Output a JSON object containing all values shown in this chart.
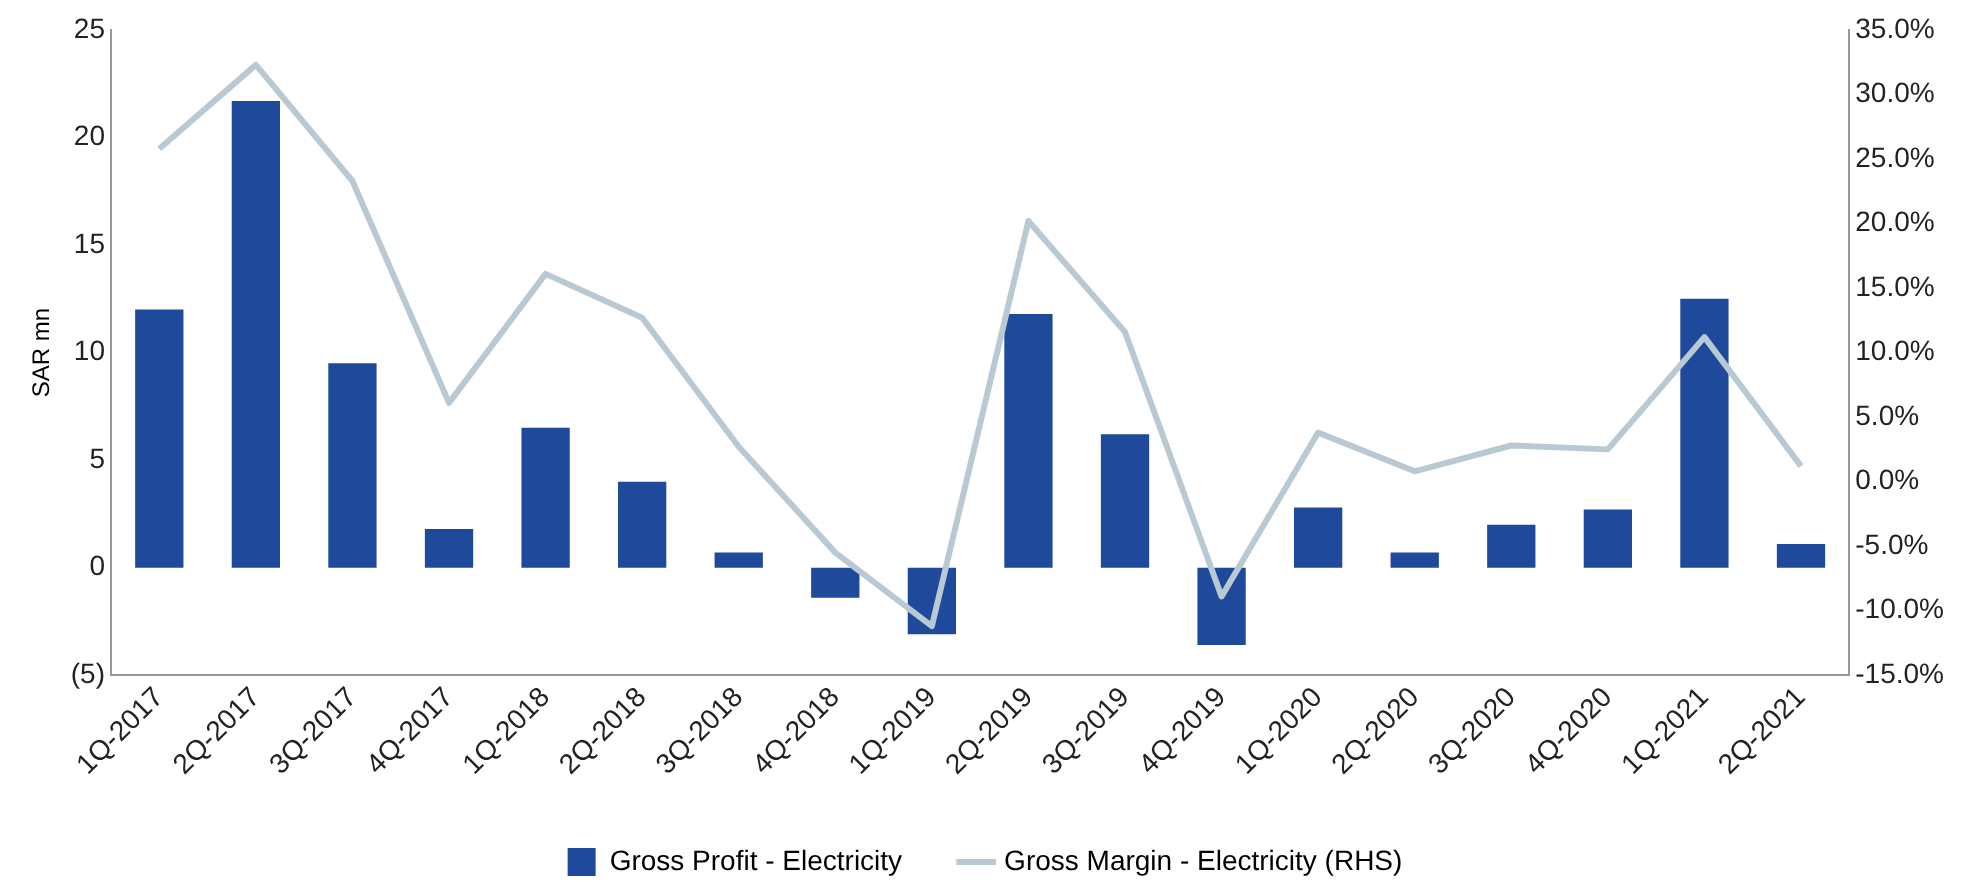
{
  "chart_data": {
    "type": "bar",
    "ylabel": "SAR mn",
    "categories": [
      "1Q-2017",
      "2Q-2017",
      "3Q-2017",
      "4Q-2017",
      "1Q-2018",
      "2Q-2018",
      "3Q-2018",
      "4Q-2018",
      "1Q-2019",
      "2Q-2019",
      "3Q-2019",
      "4Q-2019",
      "1Q-2020",
      "2Q-2020",
      "3Q-2020",
      "4Q-2020",
      "1Q-2021",
      "2Q-2021"
    ],
    "series": [
      {
        "name": "Gross Profit - Electricity",
        "color": "#1f4a9b",
        "values": [
          12.0,
          21.7,
          9.5,
          1.8,
          6.5,
          4.0,
          0.7,
          -1.4,
          -3.1,
          11.8,
          6.2,
          -3.6,
          2.8,
          0.7,
          2.0,
          2.7,
          12.5,
          1.1
        ]
      },
      {
        "name": "Gross Margin - Electricity (RHS)",
        "type": "line",
        "axis": "y2",
        "color": "#b9c9d3",
        "values": [
          25.8,
          32.3,
          23.3,
          6.1,
          16.1,
          12.7,
          2.7,
          -5.5,
          -11.2,
          20.2,
          11.6,
          -8.9,
          3.8,
          0.8,
          2.8,
          2.5,
          11.2,
          1.2
        ]
      }
    ],
    "ylim": [
      -5,
      25
    ],
    "yticks": [
      {
        "value": -5,
        "label": "(5)"
      },
      0,
      5,
      10,
      15,
      20,
      25
    ],
    "y2lim": [
      -15,
      35
    ],
    "y2ticks": [
      {
        "value": -15,
        "label": "-15.0%"
      },
      {
        "value": -10,
        "label": "-10.0%"
      },
      {
        "value": -5,
        "label": "-5.0%"
      },
      {
        "value": 0,
        "label": "0.0%"
      },
      {
        "value": 5,
        "label": "5.0%"
      },
      {
        "value": 10,
        "label": "10.0%"
      },
      {
        "value": 15,
        "label": "15.0%"
      },
      {
        "value": 20,
        "label": "20.0%"
      },
      {
        "value": 25,
        "label": "25.0%"
      },
      {
        "value": 30,
        "label": "30.0%"
      },
      {
        "value": 35,
        "label": "35.0%"
      }
    ],
    "grid": false,
    "legend": "bottom",
    "marker": "none",
    "line_style": "solid"
  }
}
